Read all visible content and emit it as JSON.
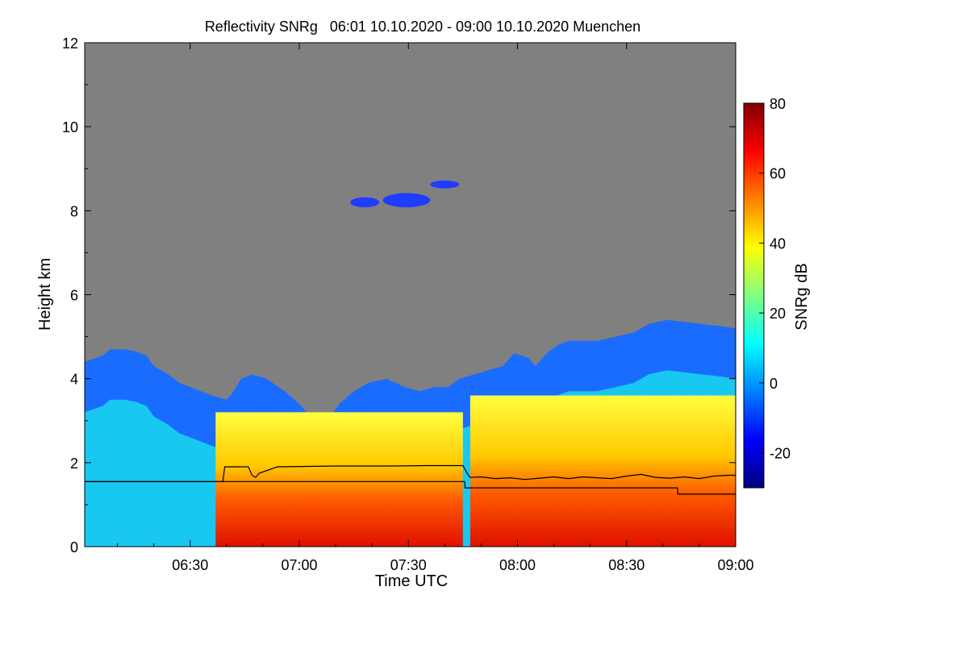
{
  "chart_data": {
    "type": "heatmap",
    "title": "Reflectivity SNRg   06:01 10.10.2020 - 09:00 10.10.2020 Muenchen",
    "xlabel": "Time UTC",
    "ylabel": "Height km",
    "x_unit": "minutes since 06:00 UTC",
    "xlim": [
      1,
      180
    ],
    "ylim": [
      0,
      12
    ],
    "x_ticks": [
      {
        "value": 30,
        "label": "06:30"
      },
      {
        "value": 60,
        "label": "07:00"
      },
      {
        "value": 90,
        "label": "07:30"
      },
      {
        "value": 120,
        "label": "08:00"
      },
      {
        "value": 150,
        "label": "08:30"
      },
      {
        "value": 180,
        "label": "09:00"
      }
    ],
    "y_ticks": [
      {
        "value": 0,
        "label": "0"
      },
      {
        "value": 2,
        "label": "2"
      },
      {
        "value": 4,
        "label": "4"
      },
      {
        "value": 6,
        "label": "6"
      },
      {
        "value": 8,
        "label": "8"
      },
      {
        "value": 10,
        "label": "10"
      },
      {
        "value": 12,
        "label": "12"
      }
    ],
    "background_color": "#808080",
    "colorbar": {
      "label": "SNRg dB",
      "range": [
        -30,
        80
      ],
      "ticks": [
        {
          "value": -20,
          "label": "-20"
        },
        {
          "value": 0,
          "label": "0"
        },
        {
          "value": 20,
          "label": "20"
        },
        {
          "value": 40,
          "label": "40"
        },
        {
          "value": 60,
          "label": "60"
        },
        {
          "value": 80,
          "label": "80"
        }
      ],
      "colors": [
        "#000080",
        "#0000ff",
        "#0080ff",
        "#00ffff",
        "#80ff80",
        "#ffff00",
        "#ff8000",
        "#ff0000",
        "#800000"
      ]
    },
    "cloud_top_km": [
      [
        1,
        4.4
      ],
      [
        6,
        4.55
      ],
      [
        8,
        4.7
      ],
      [
        12,
        4.7
      ],
      [
        15,
        4.65
      ],
      [
        18,
        4.55
      ],
      [
        20,
        4.3
      ],
      [
        24,
        4.1
      ],
      [
        27,
        3.9
      ],
      [
        33,
        3.7
      ],
      [
        36,
        3.6
      ],
      [
        40,
        3.5
      ],
      [
        42,
        3.7
      ],
      [
        44,
        4.0
      ],
      [
        47,
        4.1
      ],
      [
        51,
        4.0
      ],
      [
        56,
        3.7
      ],
      [
        60,
        3.4
      ],
      [
        64,
        3.0
      ],
      [
        67,
        2.9
      ],
      [
        71,
        3.4
      ],
      [
        75,
        3.7
      ],
      [
        79,
        3.9
      ],
      [
        84,
        4.0
      ],
      [
        89,
        3.8
      ],
      [
        93,
        3.7
      ],
      [
        97,
        3.8
      ],
      [
        101,
        3.8
      ],
      [
        104,
        4.0
      ],
      [
        108,
        4.1
      ],
      [
        112,
        4.2
      ],
      [
        116,
        4.3
      ],
      [
        119,
        4.6
      ],
      [
        123,
        4.5
      ],
      [
        125,
        4.3
      ],
      [
        128,
        4.6
      ],
      [
        131,
        4.8
      ],
      [
        134,
        4.9
      ],
      [
        138,
        4.9
      ],
      [
        142,
        4.9
      ],
      [
        147,
        5.0
      ],
      [
        152,
        5.1
      ],
      [
        156,
        5.3
      ],
      [
        161,
        5.4
      ],
      [
        166,
        5.35
      ],
      [
        171,
        5.3
      ],
      [
        176,
        5.25
      ],
      [
        180,
        5.2
      ]
    ],
    "high_clouds": [
      {
        "x": [
          74,
          82
        ],
        "y": [
          8.1,
          8.3
        ]
      },
      {
        "x": [
          83,
          96
        ],
        "y": [
          8.1,
          8.4
        ]
      },
      {
        "x": [
          96,
          104
        ],
        "y": [
          8.55,
          8.7
        ]
      }
    ],
    "series": [
      {
        "name": "upper layer line",
        "color": "#000000",
        "x": [
          1,
          39,
          39.5,
          46,
          47,
          48,
          49,
          54,
          70,
          85,
          95,
          105,
          106.5,
          107,
          110,
          114,
          118,
          122,
          126,
          130,
          134,
          138,
          142,
          146,
          150,
          154,
          158,
          162,
          166,
          170,
          174,
          178,
          180
        ],
        "y": [
          1.55,
          1.55,
          1.9,
          1.9,
          1.7,
          1.65,
          1.75,
          1.9,
          1.92,
          1.92,
          1.93,
          1.93,
          1.7,
          1.65,
          1.66,
          1.62,
          1.64,
          1.6,
          1.63,
          1.66,
          1.62,
          1.66,
          1.64,
          1.62,
          1.68,
          1.72,
          1.65,
          1.63,
          1.66,
          1.62,
          1.68,
          1.7,
          1.7
        ]
      },
      {
        "name": "lower layer line",
        "color": "#000000",
        "x": [
          1,
          105.5,
          105.6,
          164,
          164.1,
          180
        ],
        "y": [
          1.55,
          1.55,
          1.4,
          1.4,
          1.25,
          1.25
        ]
      }
    ]
  }
}
